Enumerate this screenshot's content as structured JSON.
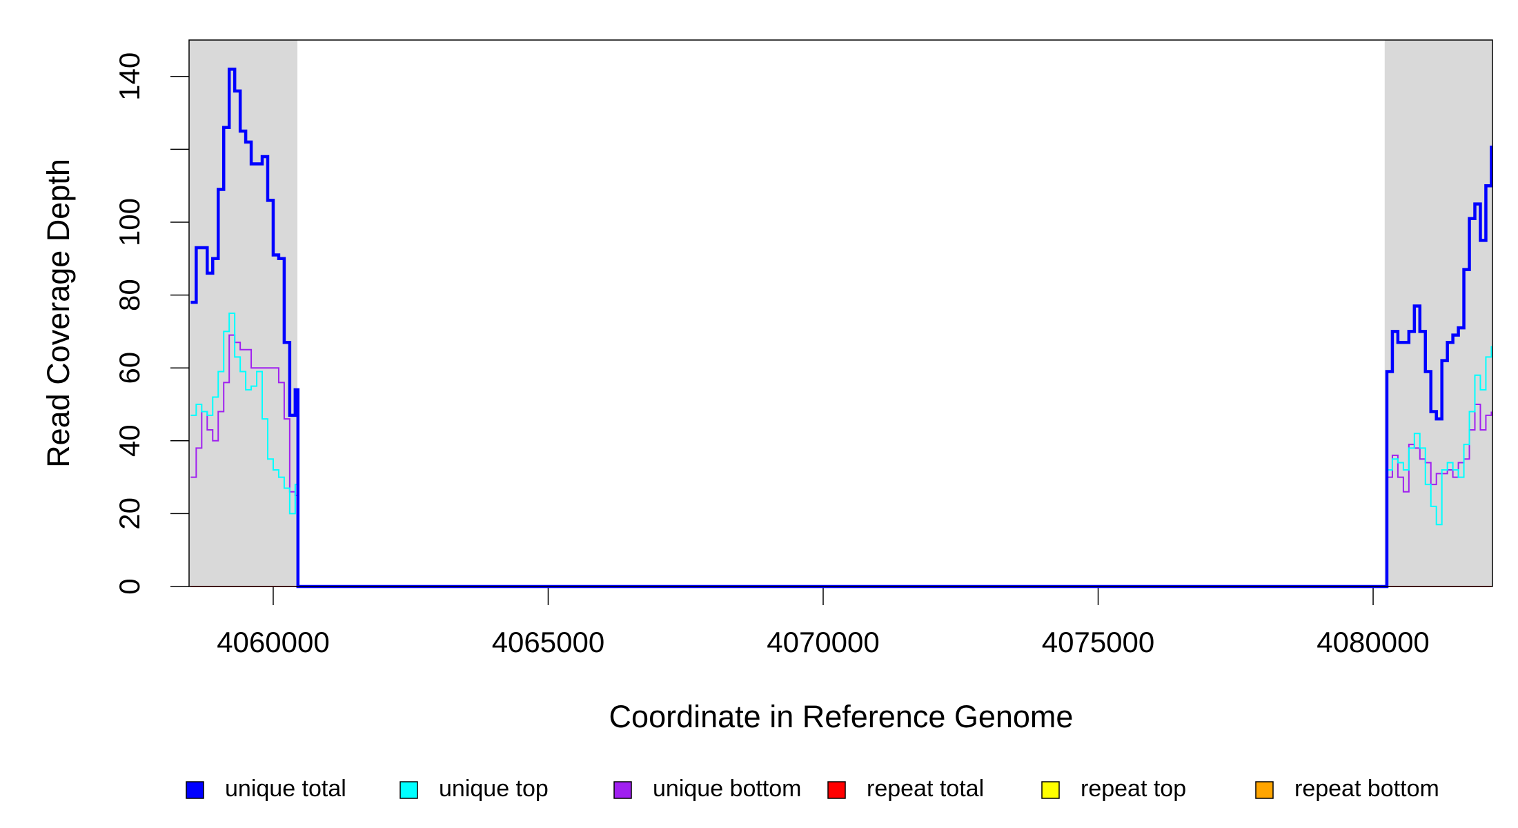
{
  "chart_data": {
    "type": "step",
    "xlabel": "Coordinate in Reference Genome",
    "ylabel": "Read Coverage Depth",
    "xlim": [
      4058470,
      4082170
    ],
    "ylim": [
      0,
      150
    ],
    "xticks": [
      4060000,
      4065000,
      4070000,
      4075000,
      4080000
    ],
    "yticks": [
      0,
      20,
      40,
      60,
      80,
      100,
      {
        "value": 120,
        "label": null
      },
      140
    ],
    "shaded_regions": [
      [
        4058470,
        4060440
      ],
      [
        4080210,
        4082170
      ]
    ],
    "shade_color": "#d9d9d9",
    "legend": "bottom",
    "x": [
      4058500,
      4058600,
      4058700,
      4058800,
      4058900,
      4059000,
      4059100,
      4059200,
      4059300,
      4059400,
      4059500,
      4059600,
      4059700,
      4059800,
      4059900,
      4060000,
      4060100,
      4060200,
      4060300,
      4060400,
      4060450,
      4080200,
      4080250,
      4080350,
      4080450,
      4080550,
      4080650,
      4080750,
      4080850,
      4080950,
      4081050,
      4081150,
      4081250,
      4081350,
      4081450,
      4081550,
      4081650,
      4081750,
      4081850,
      4081950,
      4082050,
      4082150
    ],
    "series": [
      {
        "name": "unique total",
        "color": "#0000ff",
        "values": [
          78,
          93,
          93,
          86,
          90,
          109,
          126,
          142,
          136,
          125,
          122,
          116,
          116,
          118,
          106,
          91,
          90,
          67,
          47,
          54,
          0,
          0,
          59,
          70,
          67,
          67,
          70,
          77,
          70,
          59,
          48,
          46,
          62,
          67,
          69,
          71,
          87,
          101,
          105,
          95,
          110,
          121
        ]
      },
      {
        "name": "unique top",
        "color": "#00ffff",
        "values": [
          47,
          50,
          48,
          47,
          52,
          59,
          70,
          75,
          63,
          59,
          54,
          55,
          59,
          46,
          35,
          32,
          30,
          27,
          20,
          28,
          0,
          0,
          32,
          35,
          34,
          32,
          38,
          42,
          38,
          28,
          22,
          17,
          32,
          34,
          32,
          30,
          39,
          48,
          58,
          54,
          63,
          66
        ]
      },
      {
        "name": "unique bottom",
        "color": "#a020f0",
        "values": [
          30,
          38,
          48,
          43,
          40,
          48,
          56,
          69,
          67,
          65,
          65,
          60,
          60,
          60,
          60,
          60,
          56,
          46,
          26,
          25,
          0,
          0,
          30,
          36,
          30,
          26,
          39,
          38,
          35,
          34,
          28,
          31,
          31,
          32,
          30,
          34,
          35,
          43,
          50,
          43,
          47,
          48
        ]
      },
      {
        "name": "repeat total",
        "color": "#ff0000",
        "values": [
          0,
          0,
          0,
          0,
          0,
          0,
          0,
          0,
          0,
          0,
          0,
          0,
          0,
          0,
          0,
          0,
          0,
          0,
          0,
          0,
          0,
          0,
          0,
          0,
          0,
          0,
          0,
          0,
          0,
          0,
          0,
          0,
          0,
          0,
          0,
          0,
          0,
          0,
          0,
          0,
          0,
          0
        ]
      },
      {
        "name": "repeat top",
        "color": "#ffff00",
        "values": [
          0,
          0,
          0,
          0,
          0,
          0,
          0,
          0,
          0,
          0,
          0,
          0,
          0,
          0,
          0,
          0,
          0,
          0,
          0,
          0,
          0,
          0,
          0,
          0,
          0,
          0,
          0,
          0,
          0,
          0,
          0,
          0,
          0,
          0,
          0,
          0,
          0,
          0,
          0,
          0,
          0,
          0
        ]
      },
      {
        "name": "repeat bottom",
        "color": "#ffa500",
        "values": [
          0,
          0,
          0,
          0,
          0,
          0,
          0,
          0,
          0,
          0,
          0,
          0,
          0,
          0,
          0,
          0,
          0,
          0,
          0,
          0,
          0,
          0,
          0,
          0,
          0,
          0,
          0,
          0,
          0,
          0,
          0,
          0,
          0,
          0,
          0,
          0,
          0,
          0,
          0,
          0,
          0,
          0
        ]
      }
    ]
  }
}
